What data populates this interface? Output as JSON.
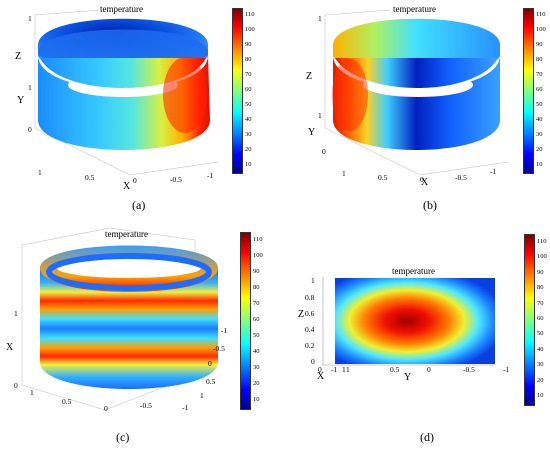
{
  "panels": [
    {
      "id": "a",
      "caption": "(a)",
      "title": "temperature",
      "axis_labels": {
        "z": "Z",
        "y": "Y",
        "x": "X"
      },
      "z_ticks": [
        "1",
        "0"
      ],
      "y_ticks": [
        "1",
        "0"
      ],
      "x_ticks": [
        "1",
        "0.5",
        "0",
        "-0.5",
        "-1"
      ],
      "colorbar": {
        "min": 5,
        "max": 115,
        "ticks": [
          "110",
          "100",
          "90",
          "80",
          "70",
          "60",
          "50",
          "40",
          "30",
          "20",
          "10"
        ]
      }
    },
    {
      "id": "b",
      "caption": "(b)",
      "title": "temperature",
      "axis_labels": {
        "z": "Z",
        "y": "Y",
        "x": "X"
      },
      "z_ticks": [
        "1",
        "0"
      ],
      "y_ticks": [
        "1",
        "0"
      ],
      "x_ticks": [
        "1",
        "0.5",
        "0",
        "-0.5",
        "-1"
      ],
      "colorbar": {
        "min": 5,
        "max": 115,
        "ticks": [
          "110",
          "100",
          "90",
          "80",
          "70",
          "60",
          "50",
          "40",
          "30",
          "20",
          "10"
        ]
      }
    },
    {
      "id": "c",
      "caption": "(c)",
      "title": "temperature",
      "axis_labels": {
        "x": "X"
      },
      "z_ticks": [
        "1",
        "0"
      ],
      "x_ticks": [
        "1",
        "0.5",
        "0",
        "-0.5",
        "-1"
      ],
      "y_ticks": [
        "-1",
        "-0.5",
        "0",
        "0.5",
        "1"
      ],
      "colorbar": {
        "min": 5,
        "max": 115,
        "ticks": [
          "110",
          "100",
          "90",
          "80",
          "70",
          "60",
          "50",
          "40",
          "30",
          "20",
          "10"
        ]
      }
    },
    {
      "id": "d",
      "caption": "(d)",
      "title": "temperature",
      "axis_labels": {
        "z": "Z",
        "x": "X",
        "y": "Y"
      },
      "z_ticks": [
        "1",
        "0.8",
        "0.6",
        "0.4",
        "0.2",
        "0"
      ],
      "x_ticks": [
        "0",
        "-1",
        "1",
        "1",
        "0.5",
        "0",
        "-0.5",
        "-1"
      ],
      "colorbar": {
        "min": 5,
        "max": 115,
        "ticks": [
          "110",
          "100",
          "90",
          "80",
          "70",
          "60",
          "50",
          "40",
          "30",
          "20",
          "10"
        ]
      }
    }
  ]
}
